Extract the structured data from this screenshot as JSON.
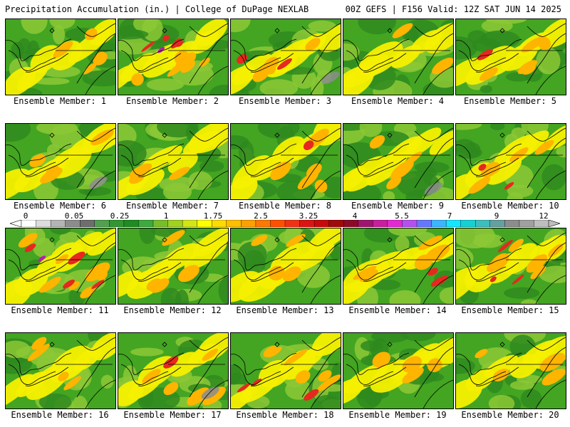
{
  "header": {
    "title_left": "Precipitation Accumulation (in.) | College of DuPage NEXLAB",
    "title_right": "00Z GEFS | F156 Valid: 12Z SAT JUN 14 2025"
  },
  "panel_label_prefix": "Ensemble Member:",
  "members": [
    {
      "id": 1,
      "label": "Ensemble Member: 1",
      "intensity": 1.0,
      "dry": 0.4
    },
    {
      "id": 2,
      "label": "Ensemble Member: 2",
      "intensity": 2.2,
      "dry": 0.2
    },
    {
      "id": 3,
      "label": "Ensemble Member: 3",
      "intensity": 1.6,
      "dry": 0.6
    },
    {
      "id": 4,
      "label": "Ensemble Member: 4",
      "intensity": 0.7,
      "dry": 0.5
    },
    {
      "id": 5,
      "label": "Ensemble Member: 5",
      "intensity": 1.4,
      "dry": 0.3
    },
    {
      "id": 6,
      "label": "Ensemble Member: 6",
      "intensity": 0.8,
      "dry": 0.9
    },
    {
      "id": 7,
      "label": "Ensemble Member: 7",
      "intensity": 0.6,
      "dry": 0.5
    },
    {
      "id": 8,
      "label": "Ensemble Member: 8",
      "intensity": 1.3,
      "dry": 0.4
    },
    {
      "id": 9,
      "label": "Ensemble Member: 9",
      "intensity": 0.8,
      "dry": 0.7
    },
    {
      "id": 10,
      "label": "Ensemble Member: 10",
      "intensity": 1.5,
      "dry": 0.2
    },
    {
      "id": 11,
      "label": "Ensemble Member: 11",
      "intensity": 2.4,
      "dry": 0.3
    },
    {
      "id": 12,
      "label": "Ensemble Member: 12",
      "intensity": 1.2,
      "dry": 0.4
    },
    {
      "id": 13,
      "label": "Ensemble Member: 13",
      "intensity": 1.0,
      "dry": 0.4
    },
    {
      "id": 14,
      "label": "Ensemble Member: 14",
      "intensity": 1.6,
      "dry": 0.3
    },
    {
      "id": 15,
      "label": "Ensemble Member: 15",
      "intensity": 1.9,
      "dry": 0.3
    },
    {
      "id": 16,
      "label": "Ensemble Member: 16",
      "intensity": 1.1,
      "dry": 0.4
    },
    {
      "id": 17,
      "label": "Ensemble Member: 17",
      "intensity": 1.3,
      "dry": 0.6
    },
    {
      "id": 18,
      "label": "Ensemble Member: 18",
      "intensity": 2.0,
      "dry": 0.2
    },
    {
      "id": 19,
      "label": "Ensemble Member: 19",
      "intensity": 1.1,
      "dry": 0.3
    },
    {
      "id": 20,
      "label": "Ensemble Member: 20",
      "intensity": 1.1,
      "dry": 0.4
    }
  ],
  "colorbar": {
    "tick_labels": [
      "0",
      "0.05",
      "0.25",
      "1",
      "1.75",
      "2.5",
      "3.25",
      "4",
      "5.5",
      "7",
      "9",
      "12"
    ],
    "colors": [
      "#ffffff",
      "#dcdcdc",
      "#b4b4b4",
      "#8c8c8c",
      "#6e6e6e",
      "#50a050",
      "#329632",
      "#1e8c1e",
      "#3caa3c",
      "#78be28",
      "#a0d21e",
      "#d2e614",
      "#ffff00",
      "#ffdc00",
      "#ffbe00",
      "#ffa000",
      "#ff7800",
      "#ff5000",
      "#f03214",
      "#dc1414",
      "#c80a0a",
      "#a00a0a",
      "#8c0a28",
      "#a0146e",
      "#c81ea0",
      "#e628d2",
      "#b450f0",
      "#6478ff",
      "#3cb4ff",
      "#14e6ff",
      "#14d2d2",
      "#3cbebe",
      "#64a0a0",
      "#8c8c8c",
      "#a0a0a0",
      "#bebebe"
    ]
  },
  "palette": {
    "dark_green": "#2f8a1e",
    "green": "#43a521",
    "light_green": "#8cc836",
    "yellow": "#f5f000",
    "orange": "#ffb400",
    "red": "#e6281e",
    "dark_red": "#a00a14",
    "purple": "#b41eb4",
    "gray": "#8c8c8c"
  }
}
